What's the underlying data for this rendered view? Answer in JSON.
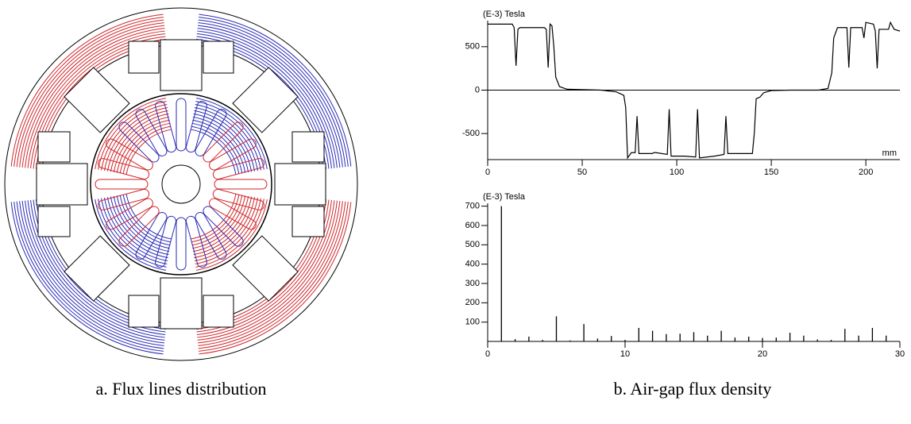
{
  "chart_data": [
    {
      "type": "line",
      "y_label": "(E-3) Tesla",
      "x_label": "mm",
      "x": [
        0,
        13,
        14,
        15,
        16,
        17,
        30,
        31,
        32,
        33,
        34,
        35,
        36,
        38,
        42,
        60,
        68,
        72,
        73,
        74,
        76,
        78,
        79,
        80,
        87,
        88,
        89,
        95,
        96,
        97,
        104,
        110,
        111,
        112,
        120,
        125,
        126,
        127,
        140,
        141,
        142,
        144,
        146,
        150,
        160,
        175,
        180,
        182,
        183,
        185,
        190,
        191,
        192,
        198,
        199,
        200,
        204,
        205,
        206,
        207,
        212,
        213,
        215,
        218
      ],
      "values": [
        760,
        760,
        720,
        280,
        700,
        720,
        720,
        700,
        260,
        760,
        740,
        500,
        150,
        40,
        10,
        0,
        -20,
        -60,
        -200,
        -780,
        -720,
        -720,
        -300,
        -730,
        -730,
        -720,
        -720,
        -740,
        -220,
        -760,
        -760,
        -770,
        -220,
        -780,
        -760,
        -740,
        -300,
        -730,
        -730,
        -500,
        -100,
        -80,
        -30,
        -5,
        0,
        0,
        20,
        200,
        600,
        720,
        720,
        260,
        720,
        720,
        600,
        780,
        760,
        680,
        250,
        700,
        700,
        780,
        700,
        680
      ],
      "color": "#000000",
      "xlim": [
        0,
        218
      ],
      "xticks": [
        0,
        50,
        100,
        150,
        200
      ],
      "ylim": [
        -800,
        800
      ],
      "yticks": [
        -500,
        0,
        500
      ],
      "zero_line": true
    },
    {
      "type": "bar",
      "y_label": "(E-3) Tesla",
      "x": [
        1,
        2,
        3,
        4,
        5,
        6,
        7,
        8,
        9,
        10,
        11,
        12,
        13,
        14,
        15,
        16,
        17,
        18,
        19,
        20,
        21,
        22,
        23,
        24,
        25,
        26,
        27,
        28,
        29
      ],
      "values": [
        700,
        12,
        25,
        8,
        130,
        5,
        90,
        15,
        28,
        8,
        70,
        55,
        38,
        40,
        48,
        30,
        55,
        20,
        25,
        18,
        20,
        45,
        30,
        10,
        8,
        65,
        30,
        70,
        30
      ],
      "color": "#000000",
      "xlim": [
        0,
        30
      ],
      "xticks": [
        0,
        10,
        20,
        30
      ],
      "ylim": [
        0,
        715
      ],
      "yticks": [
        100,
        200,
        300,
        400,
        500,
        600,
        700
      ]
    }
  ],
  "captions": [
    "a. Flux lines distribution",
    "b. Air-gap flux density"
  ]
}
